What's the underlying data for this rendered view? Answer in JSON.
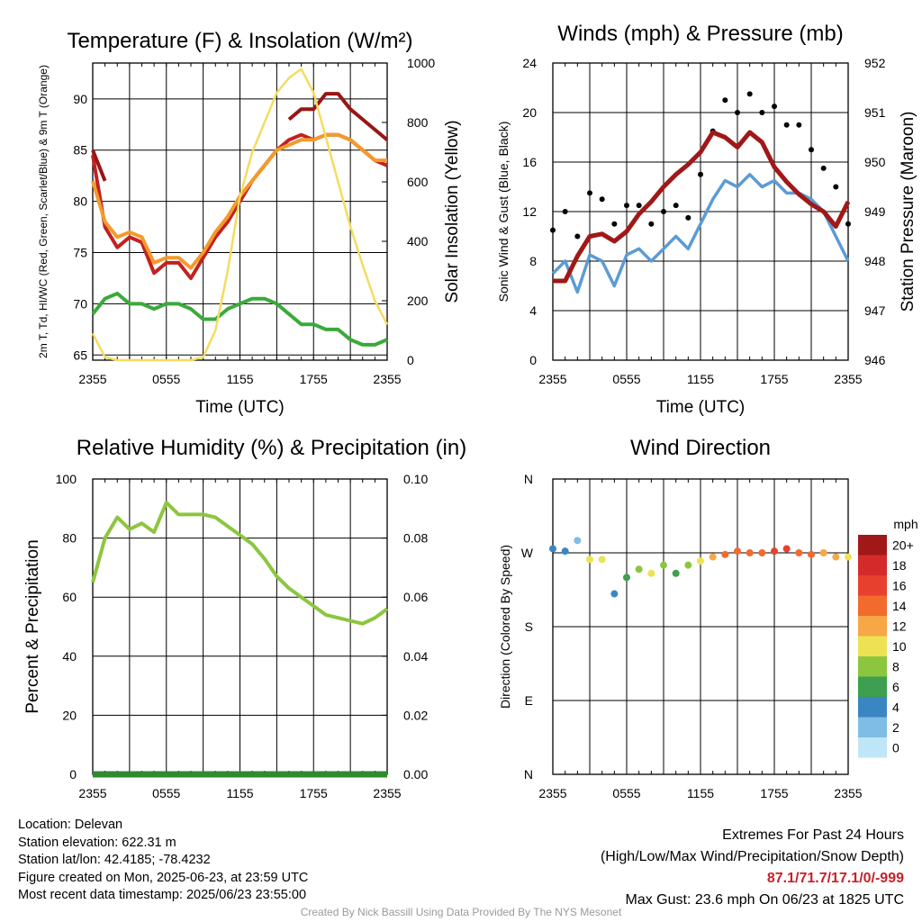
{
  "chart_data": [
    {
      "type": "line",
      "title": "Temperature (F) & Insolation (W/m²)",
      "xlabel": "Time (UTC)",
      "ylabel": "2m T, Td, HI/WC (Red, Green, Scarlet/Blue) & 9m T (Orange)",
      "y2label": "Solar Insolation (Yellow)",
      "ylim": [
        64.5,
        93.5
      ],
      "y2lim": [
        0,
        1000
      ],
      "x_ticks": [
        "2355",
        "0555",
        "1155",
        "1755",
        "2355"
      ],
      "y_ticks": [
        65,
        70,
        75,
        80,
        85,
        90
      ],
      "y2_ticks": [
        0,
        200,
        400,
        600,
        800,
        1000
      ],
      "x_hours": [
        0,
        1,
        2,
        3,
        4,
        5,
        6,
        7,
        8,
        9,
        10,
        11,
        12,
        13,
        14,
        15,
        16,
        17,
        18,
        19,
        20,
        21,
        22,
        23,
        24
      ],
      "series": [
        {
          "name": "Red",
          "color": "#c42020",
          "values": [
            84.5,
            77.5,
            75.5,
            76.5,
            76.0,
            73.0,
            74.0,
            74.0,
            72.5,
            74.5,
            76.5,
            78.0,
            80.0,
            82.0,
            83.5,
            85.0,
            86.0,
            86.5,
            86.0,
            86.5,
            86.5,
            86.0,
            85.0,
            84.0,
            83.5
          ]
        },
        {
          "name": "Orange",
          "color": "#f39a2c",
          "values": [
            82.0,
            78.0,
            76.5,
            77.0,
            76.5,
            74.0,
            74.5,
            74.5,
            73.5,
            75.0,
            77.0,
            78.5,
            80.5,
            82.0,
            83.5,
            85.0,
            85.5,
            86.0,
            86.0,
            86.5,
            86.5,
            86.0,
            85.0,
            84.0,
            84.0
          ]
        },
        {
          "name": "Green",
          "color": "#3aaa3a",
          "values": [
            69.0,
            70.5,
            71.0,
            70.0,
            70.0,
            69.5,
            70.0,
            70.0,
            69.5,
            68.5,
            68.5,
            69.5,
            70.0,
            70.5,
            70.5,
            70.0,
            69.0,
            68.0,
            68.0,
            67.5,
            67.5,
            66.5,
            66.0,
            66.0,
            66.5
          ]
        },
        {
          "name": "Scarlet",
          "color": "#981616",
          "values": [
            85.0,
            82.0,
            null,
            null,
            null,
            null,
            null,
            null,
            null,
            null,
            null,
            null,
            null,
            null,
            null,
            null,
            88.0,
            89.0,
            89.0,
            90.5,
            90.5,
            89.0,
            88.0,
            87.0,
            86.0
          ]
        },
        {
          "name": "Yellow",
          "color": "#f4dc60",
          "axis": "y2",
          "values": [
            90,
            10,
            0,
            0,
            0,
            0,
            0,
            0,
            0,
            10,
            100,
            300,
            550,
            700,
            800,
            900,
            950,
            980,
            900,
            750,
            600,
            450,
            320,
            200,
            120
          ]
        }
      ]
    },
    {
      "type": "line",
      "title": "Winds (mph) & Pressure (mb)",
      "xlabel": "Time (UTC)",
      "ylabel": "Sonic Wind & Gust (Blue, Black)",
      "y2label": "Station Pressure (Maroon)",
      "ylim": [
        0,
        24
      ],
      "y2lim": [
        946,
        952
      ],
      "x_ticks": [
        "2355",
        "0555",
        "1155",
        "1755",
        "2355"
      ],
      "y_ticks": [
        0,
        4,
        8,
        12,
        16,
        20,
        24
      ],
      "y2_ticks": [
        946,
        947,
        948,
        949,
        950,
        951,
        952
      ],
      "x_hours": [
        0,
        1,
        2,
        3,
        4,
        5,
        6,
        7,
        8,
        9,
        10,
        11,
        12,
        13,
        14,
        15,
        16,
        17,
        18,
        19,
        20,
        21,
        22,
        23,
        24
      ],
      "series": [
        {
          "name": "Blue",
          "color": "#5b9bd5",
          "values": [
            7.0,
            8.0,
            5.5,
            8.5,
            8.0,
            6.0,
            8.5,
            9.0,
            8.0,
            9.0,
            10.0,
            9.0,
            11.0,
            13.0,
            14.5,
            14.0,
            15.0,
            14.0,
            14.5,
            13.5,
            13.5,
            13.0,
            12.0,
            10.0,
            8.0
          ]
        },
        {
          "name": "Black",
          "color": "#000000",
          "values": [
            10.5,
            12.0,
            10.0,
            13.5,
            13.0,
            11.0,
            12.5,
            12.5,
            11.0,
            12.0,
            12.5,
            11.5,
            15.0,
            18.5,
            21.0,
            20.0,
            21.5,
            20.0,
            20.5,
            19.0,
            19.0,
            17.0,
            15.5,
            14.0,
            11.0
          ]
        },
        {
          "name": "Maroon",
          "color": "#a01818",
          "axis": "y2",
          "values": [
            947.6,
            947.6,
            948.1,
            948.5,
            948.55,
            948.4,
            948.6,
            948.95,
            949.2,
            949.5,
            949.75,
            949.95,
            950.2,
            950.6,
            950.5,
            950.3,
            950.6,
            950.4,
            949.9,
            949.6,
            949.35,
            949.15,
            949.0,
            948.7,
            949.2
          ]
        }
      ]
    },
    {
      "type": "line",
      "title": "Relative Humidity (%) & Precipitation (in)",
      "xlabel": "",
      "ylabel": "Percent & Precipitation",
      "ylim": [
        0,
        100
      ],
      "y2lim": [
        0,
        0.1
      ],
      "x_ticks": [
        "2355",
        "0555",
        "1155",
        "1755",
        "2355"
      ],
      "y_ticks": [
        0,
        20,
        40,
        60,
        80,
        100
      ],
      "y2_ticks": [
        "0.00",
        "0.02",
        "0.04",
        "0.06",
        "0.08",
        "0.10"
      ],
      "x_hours": [
        0,
        1,
        2,
        3,
        4,
        5,
        6,
        7,
        8,
        9,
        10,
        11,
        12,
        13,
        14,
        15,
        16,
        17,
        18,
        19,
        20,
        21,
        22,
        23,
        24
      ],
      "series": [
        {
          "name": "Relative Humidity",
          "color": "#8cc63f",
          "values": [
            65,
            80,
            87,
            83,
            85,
            82,
            92,
            88,
            88,
            88,
            87,
            84,
            81,
            78,
            73,
            67,
            63,
            60,
            57,
            54,
            53,
            52,
            51,
            53,
            56
          ]
        },
        {
          "name": "Precipitation",
          "color": "#2e8b2e",
          "axis": "y2",
          "values": [
            0,
            0,
            0,
            0,
            0,
            0,
            0,
            0,
            0,
            0,
            0,
            0,
            0,
            0,
            0,
            0,
            0,
            0,
            0,
            0,
            0,
            0,
            0,
            0,
            0
          ]
        }
      ]
    },
    {
      "type": "scatter",
      "title": "Wind Direction",
      "xlabel": "",
      "ylabel": "Direction (Colored By Speed)",
      "ylim": [
        0,
        360
      ],
      "x_ticks": [
        "2355",
        "0555",
        "1155",
        "1755",
        "2355"
      ],
      "y_tick_labels": [
        "N",
        "E",
        "S",
        "W",
        "N"
      ],
      "x_hours": [
        0,
        1,
        2,
        3,
        4,
        5,
        6,
        7,
        8,
        9,
        10,
        11,
        12,
        13,
        14,
        15,
        16,
        17,
        18,
        19,
        20,
        21,
        22,
        23,
        24
      ],
      "directions": [
        275,
        272,
        285,
        262,
        262,
        220,
        240,
        250,
        245,
        255,
        245,
        255,
        260,
        265,
        268,
        272,
        270,
        270,
        272,
        275,
        270,
        268,
        270,
        265,
        265
      ],
      "speeds": [
        5,
        4,
        3,
        10,
        10,
        4,
        7,
        8,
        10,
        8,
        7,
        8,
        11,
        13,
        14,
        14,
        15,
        15,
        16,
        16,
        15,
        14,
        13,
        12,
        10
      ],
      "colorbar": {
        "unit": "mph",
        "labels": [
          "20+",
          "18",
          "16",
          "14",
          "12",
          "10",
          "8",
          "6",
          "4",
          "2",
          "0"
        ],
        "colors": [
          "#a01818",
          "#d42a2a",
          "#e8402e",
          "#f26b2d",
          "#f8a746",
          "#ece254",
          "#8cc63f",
          "#3d9f4f",
          "#3a86c2",
          "#7fbde6",
          "#bfe6f8"
        ]
      }
    }
  ],
  "info": {
    "location": "Location: Delevan",
    "elevation": "Station elevation: 622.31 m",
    "latlon": "Station lat/lon: 42.4185; -78.4232",
    "created": "Figure created on Mon, 2025-06-23, at 23:59 UTC",
    "recent": "Most recent data timestamp: 2025/06/23 23:55:00"
  },
  "extremes": {
    "title": "Extremes For Past 24 Hours",
    "subtitle": "(High/Low/Max Wind/Precipitation/Snow Depth)",
    "values": "87.1/71.7/17.1/0/-999",
    "gust": "Max Gust: 23.6 mph On 06/23 at 1825 UTC"
  },
  "credit": "Created By Nick Bassill Using Data Provided By The NYS Mesonet"
}
